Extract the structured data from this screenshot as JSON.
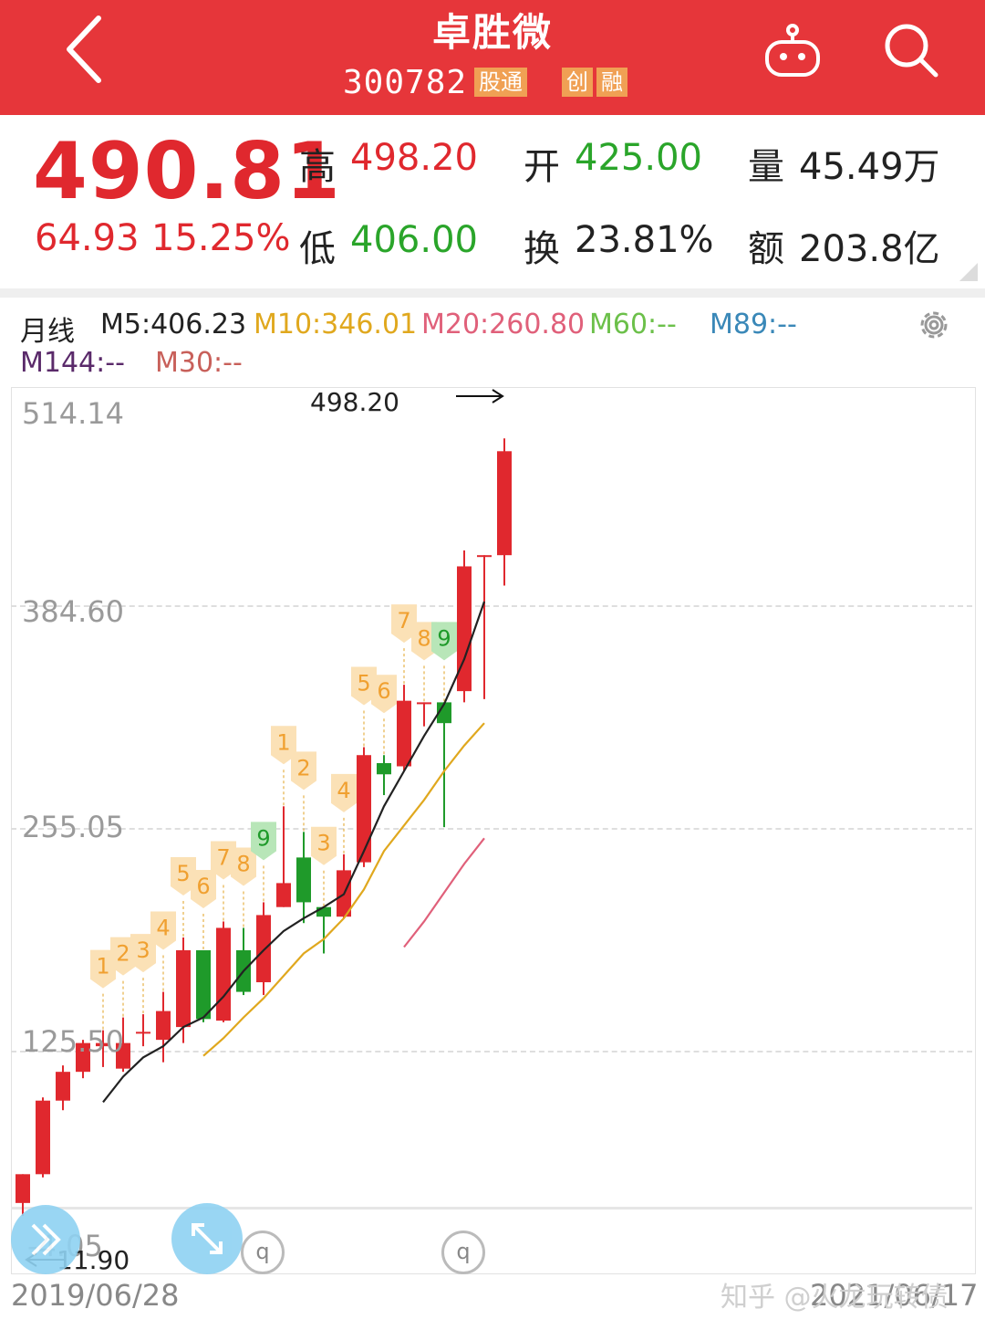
{
  "header": {
    "title": "卓胜微",
    "code": "300782",
    "tags": [
      "股通",
      "创",
      "融"
    ]
  },
  "quote": {
    "price": "490.81",
    "change": "64.93",
    "change_pct": "15.25%",
    "high_label": "高",
    "high": "498.20",
    "low_label": "低",
    "low": "406.00",
    "open_label": "开",
    "open": "425.00",
    "turnover_label": "换",
    "turnover": "23.81%",
    "volume_label": "量",
    "volume": "45.49万",
    "amount_label": "额",
    "amount": "203.8亿"
  },
  "ma": {
    "period": "月线",
    "m5": "M5:406.23",
    "m10": "M10:346.01",
    "m20": "M20:260.80",
    "m60": "M60:--",
    "m89": "M89:--",
    "m144": "M144:--",
    "m30": "M30:--",
    "colors": {
      "m5": "#222222",
      "m10": "#e0a81e",
      "m20": "#e0607a",
      "m60": "#6cc04a",
      "m89": "#3a88b8",
      "m144": "#5a2a6a",
      "m30": "#c8605a"
    }
  },
  "chart_data": {
    "type": "candlestick",
    "y_ticks": [
      "514.14",
      "384.60",
      "255.05",
      "125.50",
      "-4.05"
    ],
    "ylim": [
      -4.05,
      514.14
    ],
    "high_marker": "498.20",
    "low_marker": "11.90",
    "x_start": "2019/06/28",
    "x_end": "2021/06/17",
    "candles": [
      {
        "o": 20,
        "h": 38,
        "c": 38,
        "l": 12
      },
      {
        "o": 38,
        "h": 86,
        "c": 84,
        "l": 36
      },
      {
        "o": 84,
        "h": 106,
        "c": 102,
        "l": 78
      },
      {
        "o": 102,
        "h": 122,
        "c": 120,
        "l": 98
      },
      {
        "o": 118,
        "h": 128,
        "c": 120,
        "l": 105
      },
      {
        "o": 104,
        "h": 136,
        "c": 120,
        "l": 102
      },
      {
        "o": 127,
        "h": 138,
        "c": 127,
        "l": 118
      },
      {
        "o": 122,
        "h": 152,
        "c": 140,
        "l": 108
      },
      {
        "o": 130,
        "h": 186,
        "c": 178,
        "l": 120
      },
      {
        "o": 178,
        "h": 178,
        "c": 135,
        "l": 133
      },
      {
        "o": 134,
        "h": 196,
        "c": 192,
        "l": 133
      },
      {
        "o": 178,
        "h": 192,
        "c": 152,
        "l": 150
      },
      {
        "o": 158,
        "h": 208,
        "c": 200,
        "l": 150
      },
      {
        "o": 205,
        "h": 268,
        "c": 220,
        "l": 205
      },
      {
        "o": 236,
        "h": 252,
        "c": 208,
        "l": 195
      },
      {
        "o": 205,
        "h": 205,
        "c": 199,
        "l": 176
      },
      {
        "o": 199,
        "h": 238,
        "c": 228,
        "l": 198
      },
      {
        "o": 233,
        "h": 305,
        "c": 300,
        "l": 230
      },
      {
        "o": 295,
        "h": 300,
        "c": 288,
        "l": 275
      },
      {
        "o": 293,
        "h": 344,
        "c": 334,
        "l": 290
      },
      {
        "o": 333,
        "h": 328,
        "c": 333,
        "l": 318
      },
      {
        "o": 333,
        "h": 328,
        "c": 320,
        "l": 255
      },
      {
        "o": 340,
        "h": 428,
        "c": 418,
        "l": 333
      },
      {
        "o": 425,
        "h": 425,
        "c": 425,
        "l": 335
      },
      {
        "o": 425,
        "h": 498,
        "c": 490,
        "l": 406
      }
    ],
    "td_labels": [
      {
        "i": 4,
        "t": "1",
        "g": false
      },
      {
        "i": 5,
        "t": "2",
        "g": false
      },
      {
        "i": 6,
        "t": "3",
        "g": false
      },
      {
        "i": 7,
        "t": "4",
        "g": false
      },
      {
        "i": 8,
        "t": "5",
        "g": false
      },
      {
        "i": 9,
        "t": "6",
        "g": false
      },
      {
        "i": 10,
        "t": "7",
        "g": false
      },
      {
        "i": 11,
        "t": "8",
        "g": false
      },
      {
        "i": 12,
        "t": "9",
        "g": true
      },
      {
        "i": 13,
        "t": "1",
        "g": false
      },
      {
        "i": 14,
        "t": "2",
        "g": false
      },
      {
        "i": 15,
        "t": "3",
        "g": false
      },
      {
        "i": 16,
        "t": "4",
        "g": false
      },
      {
        "i": 17,
        "t": "5",
        "g": false
      },
      {
        "i": 18,
        "t": "6",
        "g": false
      },
      {
        "i": 19,
        "t": "7",
        "g": false
      },
      {
        "i": 20,
        "t": "8",
        "g": false
      },
      {
        "i": 21,
        "t": "9",
        "g": true
      }
    ],
    "ma5": [
      [
        4,
        83
      ],
      [
        5,
        99
      ],
      [
        6,
        111
      ],
      [
        7,
        118
      ],
      [
        8,
        130
      ],
      [
        9,
        136
      ],
      [
        10,
        149
      ],
      [
        11,
        165
      ],
      [
        12,
        178
      ],
      [
        13,
        190
      ],
      [
        14,
        198
      ],
      [
        15,
        205
      ],
      [
        16,
        213
      ],
      [
        17,
        240
      ],
      [
        18,
        268
      ],
      [
        19,
        290
      ],
      [
        20,
        312
      ],
      [
        21,
        332
      ],
      [
        22,
        360
      ],
      [
        23,
        396
      ]
    ],
    "ma10": [
      [
        9,
        112
      ],
      [
        10,
        123
      ],
      [
        11,
        136
      ],
      [
        12,
        148
      ],
      [
        13,
        162
      ],
      [
        14,
        176
      ],
      [
        15,
        185
      ],
      [
        16,
        198
      ],
      [
        17,
        216
      ],
      [
        18,
        240
      ],
      [
        19,
        256
      ],
      [
        20,
        272
      ],
      [
        21,
        290
      ],
      [
        22,
        306
      ],
      [
        23,
        320
      ]
    ],
    "ma20": [
      [
        19,
        180
      ],
      [
        20,
        196
      ],
      [
        21,
        214
      ],
      [
        22,
        232
      ],
      [
        23,
        248
      ]
    ]
  },
  "watermark": "知乎 @火龙玩转债"
}
